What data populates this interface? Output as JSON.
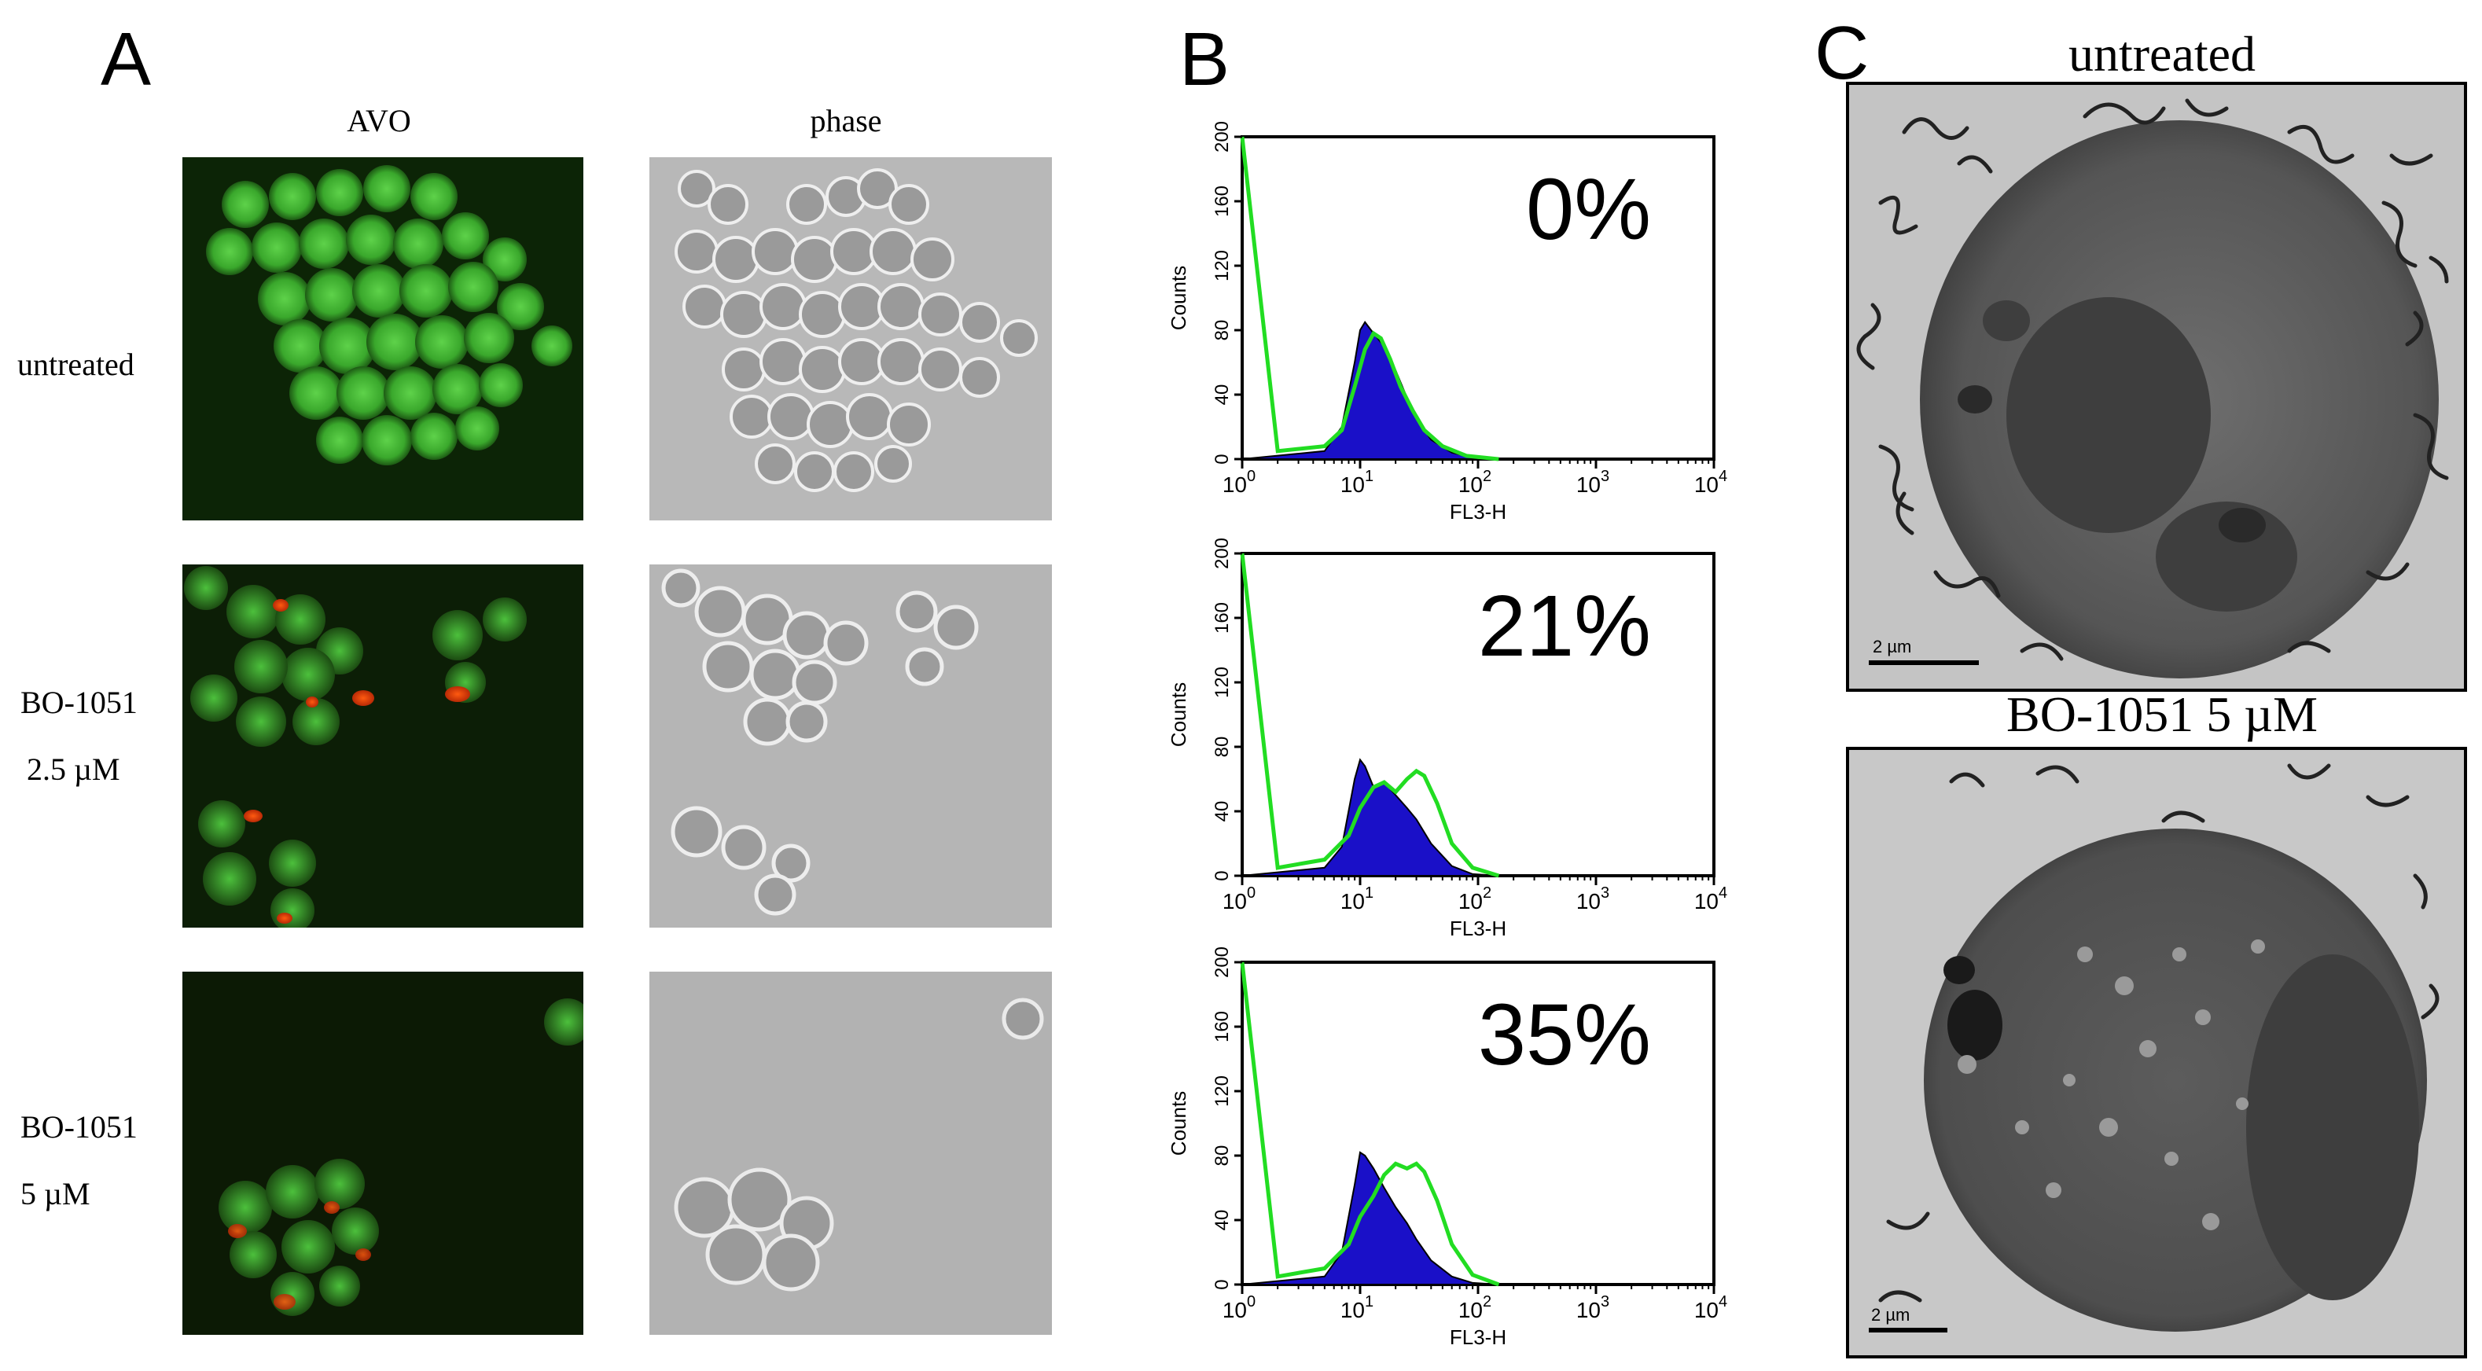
{
  "panels": {
    "a": {
      "letter": "A",
      "col_avo": "AVO",
      "col_phase": "phase",
      "row1": "untreated",
      "row2_line1": "BO-1051",
      "row2_line2": "2.5 µM",
      "row3_line1": "BO-1051",
      "row3_line2": "5 µM"
    },
    "b": {
      "letter": "B"
    },
    "c": {
      "letter": "C",
      "title_top": "untreated",
      "title_bottom": "BO-1051 5 µM",
      "scale_top": "2  µm",
      "scale_bottom": "2  µm"
    }
  },
  "chart_data": [
    {
      "type": "area",
      "xscale": "log",
      "xlim": [
        1,
        10000
      ],
      "ylim": [
        0,
        200
      ],
      "xlabel": "FL3-H",
      "ylabel": "Counts",
      "yticks": [
        0,
        40,
        80,
        120,
        160,
        200
      ],
      "xticks": [
        "10^0",
        "10^1",
        "10^2",
        "10^3",
        "10^4"
      ],
      "annotation": "0%",
      "series": [
        {
          "color": "#1a10c8",
          "x": [
            1,
            5,
            7,
            9,
            10,
            11,
            13,
            16,
            20,
            25,
            30,
            40,
            60,
            90,
            150
          ],
          "y": [
            0,
            5,
            20,
            60,
            80,
            85,
            78,
            70,
            55,
            38,
            25,
            12,
            4,
            1,
            0
          ]
        },
        {
          "color": "#22dd22",
          "x": [
            1,
            2,
            5,
            7,
            9,
            11,
            13,
            15,
            18,
            22,
            28,
            35,
            50,
            80,
            150
          ],
          "y": [
            200,
            5,
            8,
            18,
            45,
            68,
            78,
            75,
            62,
            45,
            30,
            18,
            8,
            2,
            0
          ]
        }
      ]
    },
    {
      "type": "area",
      "xscale": "log",
      "xlim": [
        1,
        10000
      ],
      "ylim": [
        0,
        200
      ],
      "xlabel": "FL3-H",
      "ylabel": "Counts",
      "yticks": [
        0,
        40,
        80,
        120,
        160,
        200
      ],
      "xticks": [
        "10^0",
        "10^1",
        "10^2",
        "10^3",
        "10^4"
      ],
      "annotation": "21%",
      "series": [
        {
          "color": "#1a10c8",
          "x": [
            1,
            5,
            7,
            9,
            10,
            11,
            13,
            16,
            20,
            25,
            30,
            40,
            60,
            90,
            150
          ],
          "y": [
            0,
            5,
            18,
            60,
            72,
            68,
            55,
            58,
            50,
            42,
            35,
            20,
            6,
            1,
            0
          ]
        },
        {
          "color": "#22dd22",
          "x": [
            1,
            2,
            5,
            8,
            10,
            13,
            16,
            20,
            25,
            30,
            35,
            45,
            60,
            90,
            150
          ],
          "y": [
            200,
            5,
            10,
            25,
            42,
            55,
            58,
            52,
            60,
            65,
            62,
            45,
            20,
            5,
            0
          ]
        }
      ]
    },
    {
      "type": "area",
      "xscale": "log",
      "xlim": [
        1,
        10000
      ],
      "ylim": [
        0,
        200
      ],
      "xlabel": "FL3-H",
      "ylabel": "Counts",
      "yticks": [
        0,
        40,
        80,
        120,
        160,
        200
      ],
      "xticks": [
        "10^0",
        "10^1",
        "10^2",
        "10^3",
        "10^4"
      ],
      "annotation": "35%",
      "series": [
        {
          "color": "#1a10c8",
          "x": [
            1,
            5,
            7,
            9,
            10,
            11,
            13,
            16,
            20,
            25,
            30,
            40,
            60,
            90,
            150
          ],
          "y": [
            0,
            5,
            20,
            62,
            82,
            80,
            72,
            60,
            48,
            38,
            28,
            15,
            5,
            1,
            0
          ]
        },
        {
          "color": "#22dd22",
          "x": [
            1,
            2,
            5,
            8,
            10,
            13,
            16,
            20,
            25,
            30,
            35,
            45,
            60,
            90,
            150
          ],
          "y": [
            200,
            5,
            10,
            25,
            42,
            55,
            68,
            75,
            72,
            75,
            70,
            52,
            25,
            6,
            0
          ]
        }
      ]
    }
  ]
}
